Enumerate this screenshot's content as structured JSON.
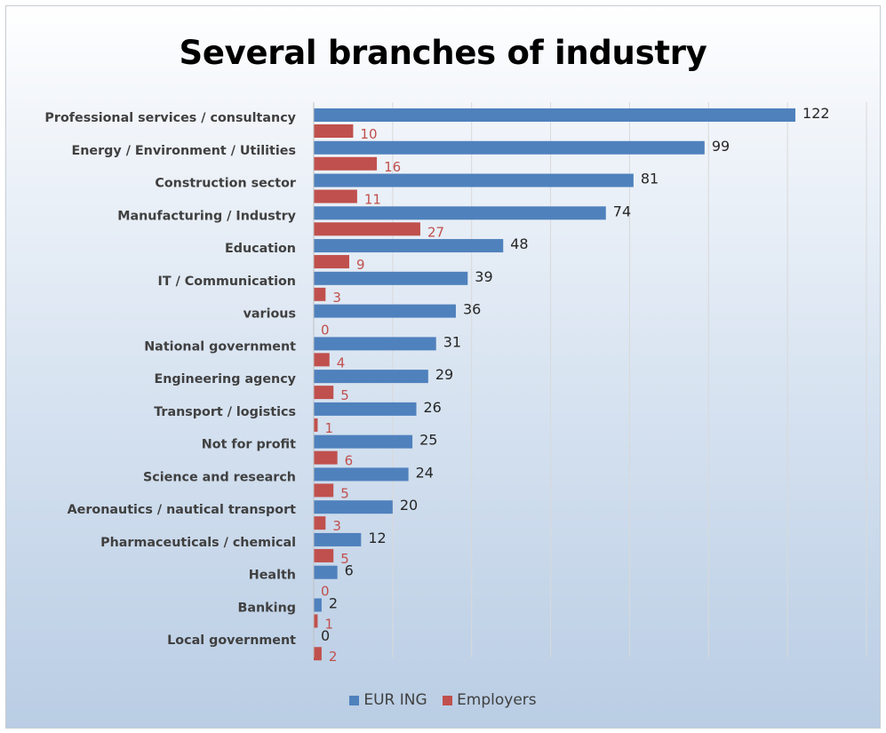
{
  "chart_data": {
    "type": "bar",
    "orientation": "horizontal",
    "title": "Several branches of industry",
    "categories": [
      "Professional services / consultancy",
      "Energy / Environment / Utilities",
      "Construction sector",
      "Manufacturing / Industry",
      "Education",
      "IT / Communication",
      "various",
      "National government",
      "Engineering agency",
      "Transport / logistics",
      "Not for profit",
      "Science and research",
      "Aeronautics / nautical transport",
      "Pharmaceuticals / chemical",
      "Health",
      "Banking",
      "Local government"
    ],
    "series": [
      {
        "name": "EUR ING",
        "color": "#4f81bd",
        "label_color": "#262626",
        "values": [
          122,
          99,
          81,
          74,
          48,
          39,
          36,
          31,
          29,
          26,
          25,
          24,
          20,
          12,
          6,
          2,
          0
        ]
      },
      {
        "name": "Employers",
        "color": "#c0504d",
        "label_color": "#c0504d",
        "values": [
          10,
          16,
          11,
          27,
          9,
          3,
          0,
          4,
          5,
          1,
          6,
          5,
          3,
          5,
          0,
          1,
          2
        ]
      }
    ],
    "xlim": [
      0,
      140
    ],
    "gridlines": "vertical",
    "legend_position": "bottom"
  }
}
